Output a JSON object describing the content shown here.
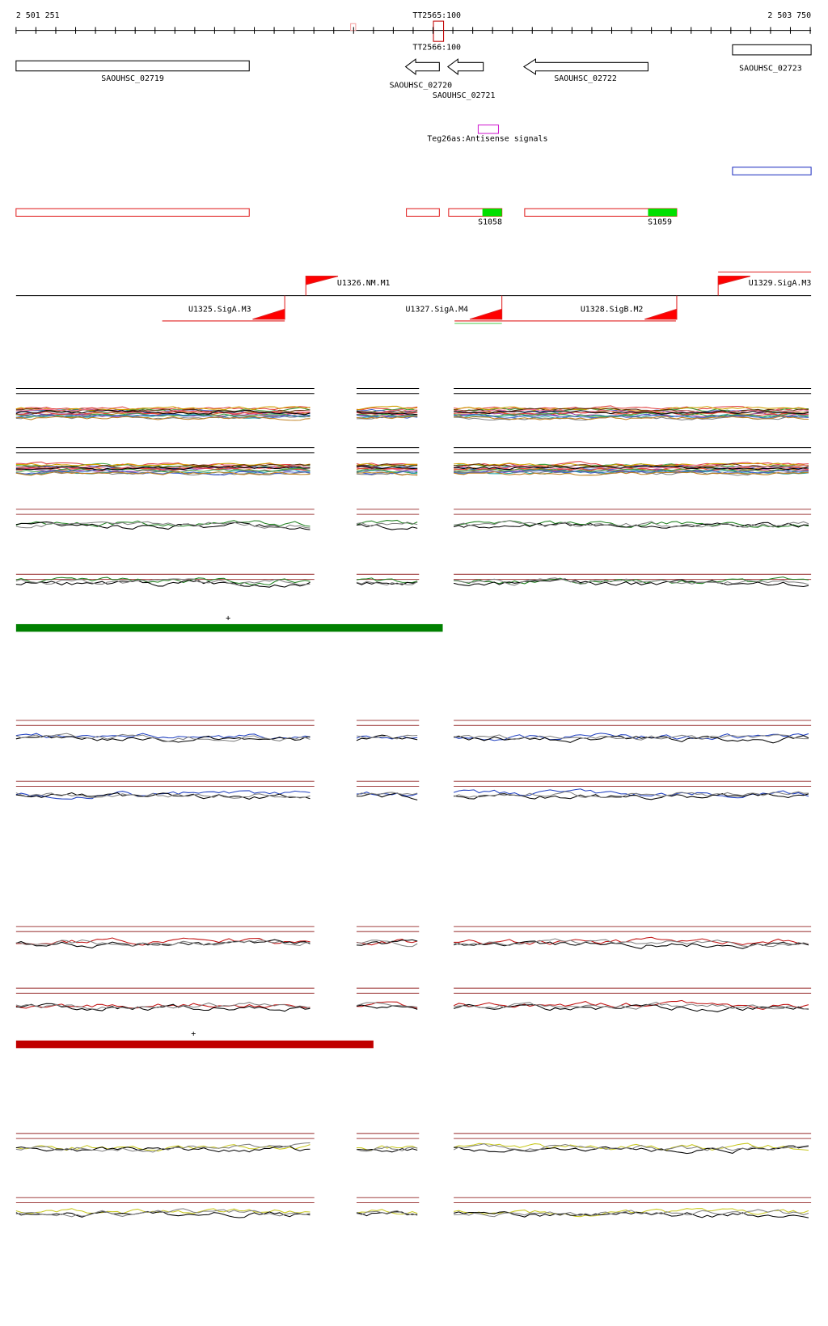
{
  "ruler": {
    "start": "2 501 251",
    "end": "2 503 750",
    "marker": "TT2565:100",
    "marker2": "TT2566:100"
  },
  "genes": [
    "SAOUHSC_02719",
    "SAOUHSC_02720",
    "SAOUHSC_02721",
    "SAOUHSC_02722",
    "SAOUHSC_02723"
  ],
  "antisense": "Teg26as:Antisense signals",
  "segments": [
    "S1058",
    "S1059"
  ],
  "promoters": [
    "U1326.NM.M1",
    "U1329.SigA.M3",
    "U1325.SigA.M3",
    "U1327.SigA.M4",
    "U1328.SigB.M2"
  ],
  "condition_markers": [
    "+",
    "+"
  ]
}
